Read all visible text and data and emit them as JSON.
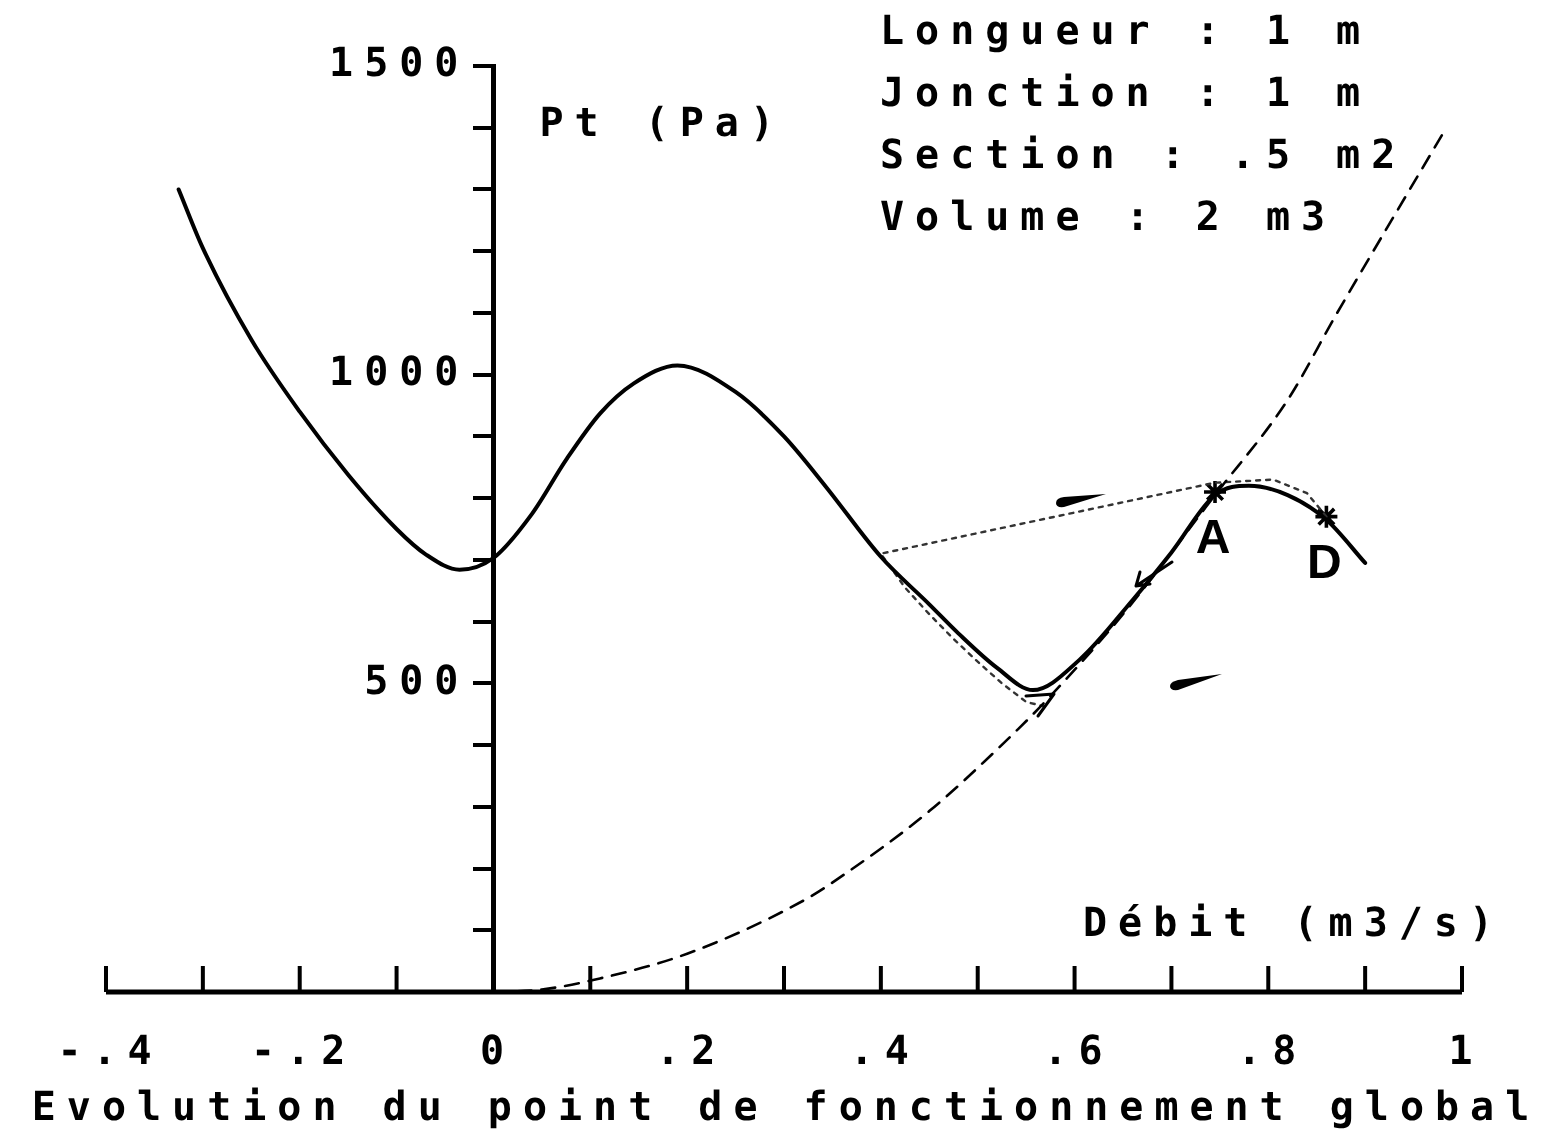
{
  "chart_data": {
    "type": "line",
    "title": "Evolution du point de fonctionnement global",
    "xlabel": "Débit (m3/s)",
    "ylabel": "Pt (Pa)",
    "annotations": [
      "Longueur : 1 m",
      "Jonction : 1 m",
      "Section : .5 m2",
      "Volume : 2 m3",
      {
        "text": "A",
        "x": 0.745,
        "y": 810
      },
      {
        "text": "D",
        "x": 0.86,
        "y": 770
      }
    ],
    "xlim": [
      -0.4,
      1
    ],
    "xticks": [
      {
        "value": -0.4,
        "label": "-.4"
      },
      {
        "value": -0.3,
        "label": null
      },
      {
        "value": -0.2,
        "label": "-.2"
      },
      {
        "value": -0.1,
        "label": null
      },
      0,
      {
        "value": 0.1,
        "label": null
      },
      {
        "value": 0.2,
        "label": ".2"
      },
      {
        "value": 0.3,
        "label": null
      },
      {
        "value": 0.4,
        "label": ".4"
      },
      {
        "value": 0.5,
        "label": null
      },
      {
        "value": 0.6,
        "label": ".6"
      },
      {
        "value": 0.7,
        "label": null
      },
      {
        "value": 0.8,
        "label": ".8"
      },
      {
        "value": 0.9,
        "label": null
      },
      1
    ],
    "ylim": [
      0,
      1500
    ],
    "yticks": [
      {
        "value": 100,
        "label": null
      },
      {
        "value": 200,
        "label": null
      },
      {
        "value": 300,
        "label": null
      },
      {
        "value": 400,
        "label": null
      },
      500,
      {
        "value": 600,
        "label": null
      },
      {
        "value": 700,
        "label": null
      },
      {
        "value": 800,
        "label": null
      },
      {
        "value": 900,
        "label": null
      },
      1000,
      {
        "value": 1100,
        "label": null
      },
      {
        "value": 1200,
        "label": null
      },
      {
        "value": 1300,
        "label": null
      },
      {
        "value": 1400,
        "label": null
      },
      1500
    ],
    "grid": false,
    "legend": false,
    "series": [
      {
        "color": "#000000",
        "line_style": "solid",
        "marker": "none",
        "x": [
          -0.325,
          -0.3,
          -0.25,
          -0.2,
          -0.15,
          -0.1,
          -0.07,
          -0.035,
          0,
          0.04,
          0.075,
          0.11,
          0.145,
          0.19,
          0.25,
          0.3,
          0.343,
          0.4,
          0.45,
          0.48,
          0.52,
          0.557,
          0.605,
          0.66,
          0.7,
          0.745,
          0.78,
          0.82,
          0.86,
          0.9
        ],
        "values": [
          1300,
          1205,
          1057,
          940,
          838,
          750,
          709,
          684,
          703,
          775,
          862,
          937,
          986,
          1015,
          972,
          900,
          819,
          705,
          628,
          581,
          525,
          489,
          538,
          635,
          712,
          805,
          820,
          805,
          765,
          695
        ]
      },
      {
        "color": "#000000",
        "line_style": "dashed",
        "marker": "none",
        "x": [
          0,
          0.05,
          0.11,
          0.2,
          0.32,
          0.36,
          0.45,
          0.53,
          0.57,
          0.65,
          0.745,
          0.82,
          0.87,
          0.98
        ],
        "values": [
          0,
          4,
          22,
          62,
          148,
          188,
          293,
          408,
          471,
          612,
          805,
          959,
          1097,
          1390
        ]
      },
      {
        "color": "#333333",
        "line_style": "dotted",
        "marker": "none",
        "x": [
          0.86,
          0.84,
          0.805,
          0.745,
          0.4,
          0.425,
          0.45,
          0.475,
          0.5,
          0.525,
          0.55,
          0.57
        ],
        "values": [
          770,
          808,
          830,
          825,
          710,
          655,
          612,
          572,
          535,
          500,
          470,
          462
        ]
      },
      {
        "type": "scatter",
        "color": "#000000",
        "marker": "cross",
        "x": [
          0.745,
          0.86
        ],
        "values": [
          810,
          770
        ]
      }
    ]
  }
}
